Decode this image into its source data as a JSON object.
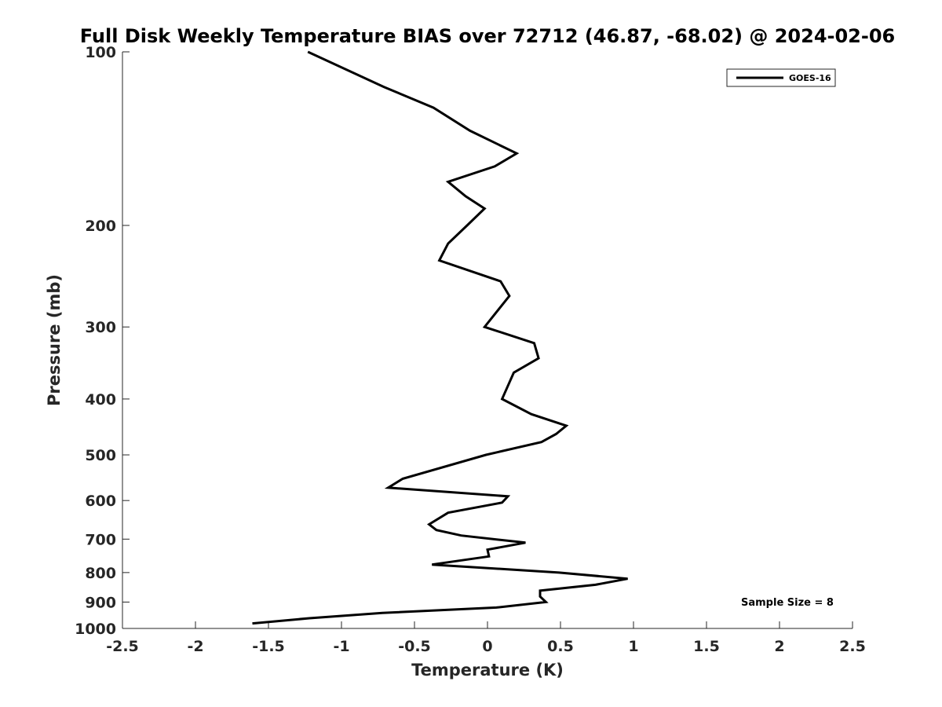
{
  "chart_data": {
    "type": "line",
    "title": "Full Disk Weekly Temperature BIAS over 72712 (46.87, -68.02) @ 2024-02-06",
    "xlabel": "Temperature (K)",
    "ylabel": "Pressure (mb)",
    "xlim": [
      -2.5,
      2.5
    ],
    "ylim": [
      100,
      1000
    ],
    "y_scale": "log",
    "y_reversed": true,
    "grid": false,
    "legend_position": "top-right",
    "x_ticks": [
      -2.5,
      -2,
      -1.5,
      -1,
      -0.5,
      0,
      0.5,
      1,
      1.5,
      2,
      2.5
    ],
    "x_tick_labels": [
      "-2.5",
      "-2",
      "-1.5",
      "-1",
      "-0.5",
      "0",
      "0.5",
      "1",
      "1.5",
      "2",
      "2.5"
    ],
    "y_ticks": [
      100,
      200,
      300,
      400,
      500,
      600,
      700,
      800,
      900,
      1000
    ],
    "y_tick_labels": [
      "100",
      "200",
      "300",
      "400",
      "500",
      "600",
      "700",
      "800",
      "900",
      "1000"
    ],
    "series": [
      {
        "name": "GOES-16",
        "color": "#000000",
        "points": [
          {
            "x": -1.23,
            "p": 100
          },
          {
            "x": -0.71,
            "p": 115
          },
          {
            "x": -0.37,
            "p": 125
          },
          {
            "x": -0.12,
            "p": 137
          },
          {
            "x": 0.2,
            "p": 150
          },
          {
            "x": 0.05,
            "p": 158
          },
          {
            "x": -0.27,
            "p": 168
          },
          {
            "x": -0.15,
            "p": 178
          },
          {
            "x": -0.02,
            "p": 187
          },
          {
            "x": -0.14,
            "p": 200
          },
          {
            "x": -0.27,
            "p": 215
          },
          {
            "x": -0.33,
            "p": 230
          },
          {
            "x": 0.09,
            "p": 250
          },
          {
            "x": 0.15,
            "p": 265
          },
          {
            "x": -0.02,
            "p": 300
          },
          {
            "x": 0.32,
            "p": 320
          },
          {
            "x": 0.35,
            "p": 340
          },
          {
            "x": 0.18,
            "p": 360
          },
          {
            "x": 0.1,
            "p": 400
          },
          {
            "x": 0.3,
            "p": 425
          },
          {
            "x": 0.54,
            "p": 445
          },
          {
            "x": 0.47,
            "p": 460
          },
          {
            "x": 0.37,
            "p": 475
          },
          {
            "x": -0.01,
            "p": 500
          },
          {
            "x": -0.58,
            "p": 550
          },
          {
            "x": -0.68,
            "p": 570
          },
          {
            "x": 0.14,
            "p": 590
          },
          {
            "x": 0.1,
            "p": 605
          },
          {
            "x": -0.27,
            "p": 630
          },
          {
            "x": -0.4,
            "p": 660
          },
          {
            "x": -0.35,
            "p": 675
          },
          {
            "x": -0.18,
            "p": 690
          },
          {
            "x": 0.26,
            "p": 710
          },
          {
            "x": 0.0,
            "p": 730
          },
          {
            "x": 0.01,
            "p": 750
          },
          {
            "x": -0.38,
            "p": 775
          },
          {
            "x": 0.49,
            "p": 800
          },
          {
            "x": 0.96,
            "p": 820
          },
          {
            "x": 0.74,
            "p": 840
          },
          {
            "x": 0.36,
            "p": 860
          },
          {
            "x": 0.36,
            "p": 880
          },
          {
            "x": 0.4,
            "p": 900
          },
          {
            "x": 0.06,
            "p": 920
          },
          {
            "x": -0.72,
            "p": 940
          },
          {
            "x": -1.22,
            "p": 960
          },
          {
            "x": -1.61,
            "p": 980
          }
        ]
      }
    ],
    "annotation": "Sample Size = 8"
  }
}
